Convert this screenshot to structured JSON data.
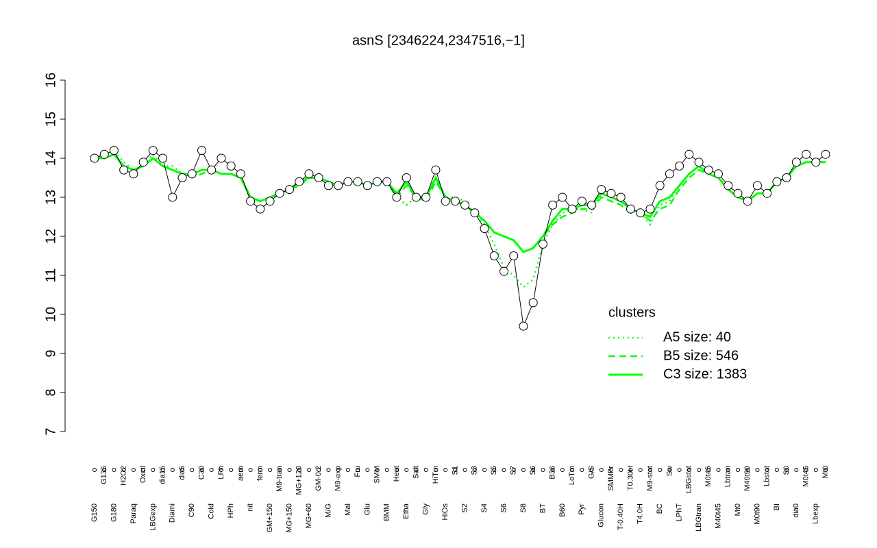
{
  "chart_data": {
    "type": "line",
    "title": "asnS [2346224,2347516,−1]",
    "categories": [
      "G150",
      "G135",
      "G180",
      "H2O2",
      "Paraq",
      "Oxctl",
      "LBGexp",
      "dia15",
      "Diami",
      "dia5",
      "C90",
      "C30",
      "Cold",
      "LPh",
      "HPh",
      "aero",
      "nit",
      "ferm",
      "GM+150",
      "M9-tran",
      "MG+150",
      "MG+120",
      "MG+60",
      "GM-0.2",
      "M/G",
      "M9-exp",
      "Mal",
      "Fru",
      "Glu",
      "SMM",
      "BMM",
      "Heat",
      "Etha",
      "Salt",
      "Gly",
      "HiTm",
      "HiOs",
      "S1",
      "S2",
      "S3",
      "S4",
      "S5",
      "S6",
      "S7",
      "S8",
      "S6",
      "BT",
      "B36",
      "B60",
      "LoTm",
      "Pyr",
      "G/S",
      "Glucon",
      "SMMPr",
      "T-0.40H",
      "T0.30H",
      "T4.0H",
      "M9-stat",
      "BC",
      "Sw",
      "LPhT",
      "LBGstat",
      "LBGtran",
      "M0t45",
      "M40t45",
      "Lbtran",
      "Mt0",
      "M40t90",
      "M0t90",
      "Lbstat",
      "BI",
      "S0",
      "dia0",
      "M0t45",
      "Lbexp",
      "Mt0"
    ],
    "values": [
      14.0,
      14.1,
      14.2,
      13.7,
      13.6,
      13.9,
      14.2,
      14.0,
      13.0,
      13.5,
      13.6,
      14.2,
      13.7,
      14.0,
      13.8,
      13.6,
      12.9,
      12.7,
      12.9,
      13.1,
      13.2,
      13.4,
      13.6,
      13.5,
      13.3,
      13.3,
      13.4,
      13.4,
      13.3,
      13.4,
      13.4,
      13.0,
      13.5,
      13.0,
      13.0,
      13.7,
      12.9,
      12.9,
      12.8,
      12.6,
      12.2,
      11.5,
      11.1,
      11.5,
      9.7,
      10.3,
      11.8,
      12.8,
      13.0,
      12.7,
      12.9,
      12.8,
      13.2,
      13.1,
      13.0,
      12.7,
      12.6,
      12.7,
      13.3,
      13.6,
      13.8,
      14.1,
      13.9,
      13.7,
      13.6,
      13.3,
      13.1,
      12.9,
      13.3,
      13.1,
      13.4,
      13.5,
      13.9,
      14.1,
      13.9,
      14.1
    ],
    "point_color": "#000000",
    "series": [
      {
        "name": "A5 size: 40",
        "color": "#00ff00",
        "style": "dotted",
        "values": [
          14.1,
          14.0,
          14.2,
          13.9,
          13.7,
          13.8,
          14.1,
          13.8,
          13.8,
          13.6,
          13.6,
          13.7,
          13.7,
          13.6,
          13.6,
          13.5,
          13.0,
          12.9,
          13.0,
          13.1,
          13.2,
          13.4,
          13.5,
          13.5,
          13.4,
          13.3,
          13.4,
          13.4,
          13.3,
          13.4,
          13.4,
          13.0,
          12.8,
          13.0,
          13.0,
          13.5,
          13.0,
          13.0,
          12.9,
          12.6,
          12.3,
          11.8,
          11.2,
          11.0,
          10.7,
          10.9,
          11.8,
          12.3,
          12.6,
          12.7,
          12.7,
          12.6,
          13.1,
          13.0,
          12.9,
          12.7,
          12.6,
          12.3,
          12.8,
          12.9,
          13.3,
          13.6,
          13.8,
          13.6,
          13.5,
          13.2,
          13.0,
          12.9,
          13.1,
          13.1,
          13.4,
          13.5,
          13.8,
          13.9,
          13.9,
          13.9
        ]
      },
      {
        "name": "B5 size: 546",
        "color": "#00ff00",
        "style": "dashed",
        "values": [
          14.0,
          14.0,
          14.1,
          13.8,
          13.7,
          13.8,
          14.0,
          13.8,
          13.7,
          13.6,
          13.5,
          13.6,
          13.7,
          13.6,
          13.6,
          13.5,
          13.0,
          12.9,
          13.0,
          13.1,
          13.2,
          13.3,
          13.5,
          13.5,
          13.4,
          13.3,
          13.4,
          13.4,
          13.3,
          13.4,
          13.4,
          13.0,
          13.3,
          13.0,
          12.9,
          13.4,
          13.0,
          12.9,
          12.8,
          12.6,
          12.4,
          12.1,
          12.0,
          11.9,
          11.6,
          11.7,
          12.0,
          12.3,
          12.5,
          12.6,
          12.7,
          12.7,
          13.0,
          12.9,
          12.8,
          12.6,
          12.6,
          12.4,
          12.7,
          12.8,
          13.2,
          13.5,
          13.7,
          13.6,
          13.5,
          13.2,
          13.0,
          12.9,
          13.1,
          13.1,
          13.4,
          13.5,
          13.8,
          13.9,
          13.9,
          13.9
        ]
      },
      {
        "name": "C3 size: 1383",
        "color": "#00ff00",
        "style": "solid",
        "values": [
          14.0,
          14.0,
          14.1,
          13.8,
          13.7,
          13.8,
          14.0,
          13.8,
          13.7,
          13.6,
          13.6,
          13.7,
          13.7,
          13.6,
          13.6,
          13.5,
          13.0,
          12.9,
          13.0,
          13.1,
          13.2,
          13.4,
          13.5,
          13.5,
          13.4,
          13.3,
          13.4,
          13.4,
          13.3,
          13.4,
          13.4,
          13.1,
          13.4,
          13.0,
          13.0,
          13.5,
          13.0,
          12.9,
          12.8,
          12.6,
          12.4,
          12.1,
          12.0,
          11.9,
          11.6,
          11.7,
          12.0,
          12.4,
          12.7,
          12.7,
          12.8,
          12.8,
          13.1,
          13.0,
          12.9,
          12.7,
          12.6,
          12.5,
          12.9,
          13.0,
          13.3,
          13.6,
          13.8,
          13.6,
          13.5,
          13.2,
          13.0,
          12.9,
          13.1,
          13.1,
          13.4,
          13.5,
          13.8,
          13.9,
          13.9,
          13.9
        ]
      }
    ],
    "legend_title": "clusters",
    "legend_position": "right",
    "ylim": [
      7,
      16
    ],
    "yticks": [
      7,
      8,
      9,
      10,
      11,
      12,
      13,
      14,
      15,
      16
    ]
  }
}
